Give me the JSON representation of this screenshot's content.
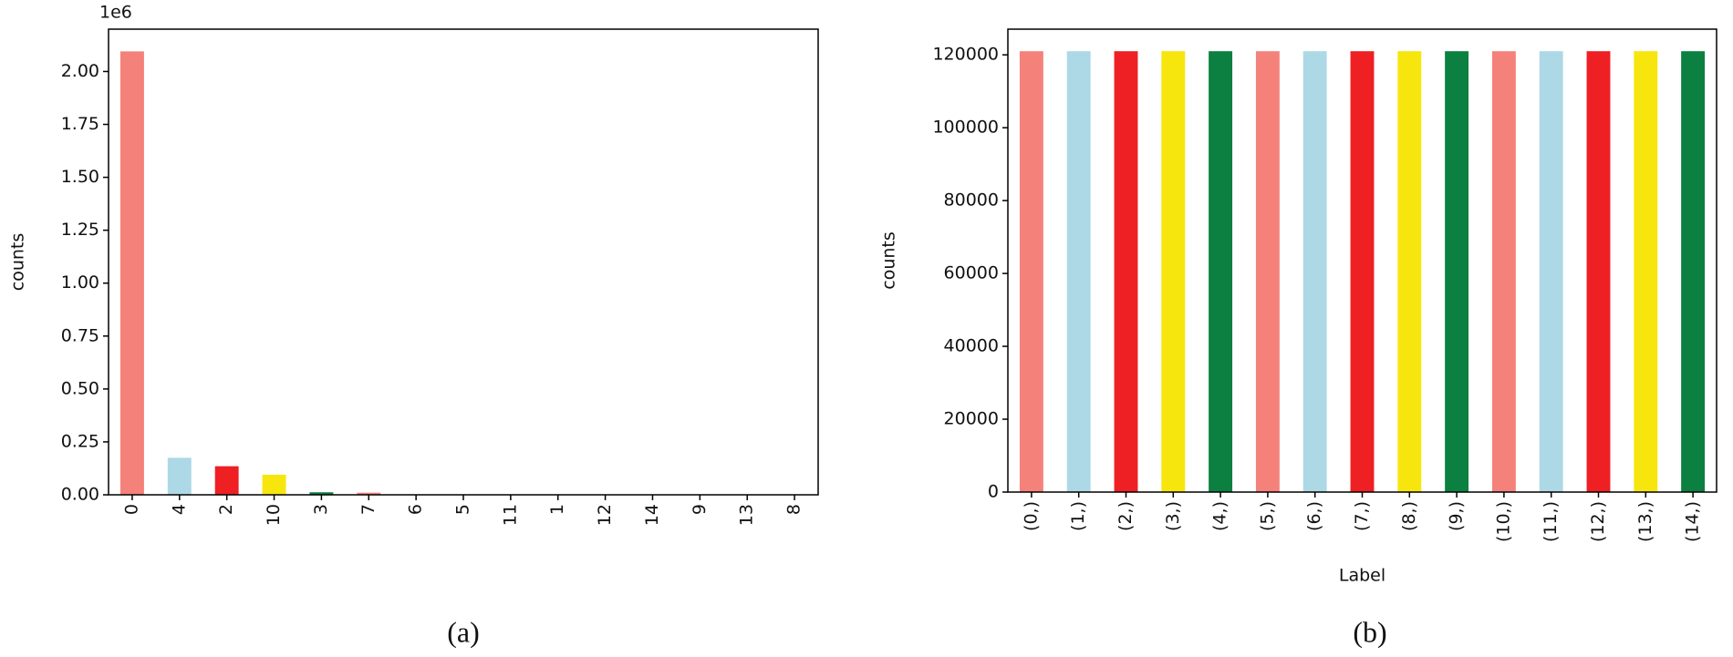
{
  "chart_data": [
    {
      "type": "bar",
      "ylabel": "counts",
      "annotation": "1e6",
      "caption": "(a)",
      "categories": [
        "0",
        "4",
        "2",
        "10",
        "3",
        "7",
        "6",
        "5",
        "11",
        "1",
        "12",
        "14",
        "9",
        "13",
        "8"
      ],
      "values": [
        2.095,
        0.175,
        0.135,
        0.095,
        0.012,
        0.01,
        0.002,
        0.001,
        0.001,
        0.001,
        0.001,
        0.001,
        0.0005,
        0.0005,
        0.0005
      ],
      "colors": [
        "#f4817a",
        "#add8e6",
        "#ee2024",
        "#f7e60d",
        "#0b8040"
      ],
      "ylim": [
        0,
        2.2
      ],
      "yticks": [
        {
          "value": 0,
          "label": "0.00"
        },
        {
          "value": 0.25,
          "label": "0.25"
        },
        {
          "value": 0.5,
          "label": "0.50"
        },
        {
          "value": 0.75,
          "label": "0.75"
        },
        {
          "value": 1,
          "label": "1.00"
        },
        {
          "value": 1.25,
          "label": "1.25"
        },
        {
          "value": 1.5,
          "label": "1.50"
        },
        {
          "value": 1.75,
          "label": "1.75"
        },
        {
          "value": 2,
          "label": "2.00"
        }
      ]
    },
    {
      "type": "bar",
      "ylabel": "counts",
      "xlabel": "Label",
      "caption": "(b)",
      "categories": [
        "(0,)",
        "(1,)",
        "(2,)",
        "(3,)",
        "(4,)",
        "(5,)",
        "(6,)",
        "(7,)",
        "(8,)",
        "(9,)",
        "(10,)",
        "(11,)",
        "(12,)",
        "(13,)",
        "(14,)"
      ],
      "values": [
        121000,
        121000,
        121000,
        121000,
        121000,
        121000,
        121000,
        121000,
        121000,
        121000,
        121000,
        121000,
        121000,
        121000,
        121000
      ],
      "colors": [
        "#f4817a",
        "#add8e6",
        "#ee2024",
        "#f7e60d",
        "#0b8040"
      ],
      "ylim": [
        0,
        127050
      ],
      "yticks": [
        0,
        20000,
        40000,
        60000,
        80000,
        100000,
        120000
      ]
    }
  ]
}
